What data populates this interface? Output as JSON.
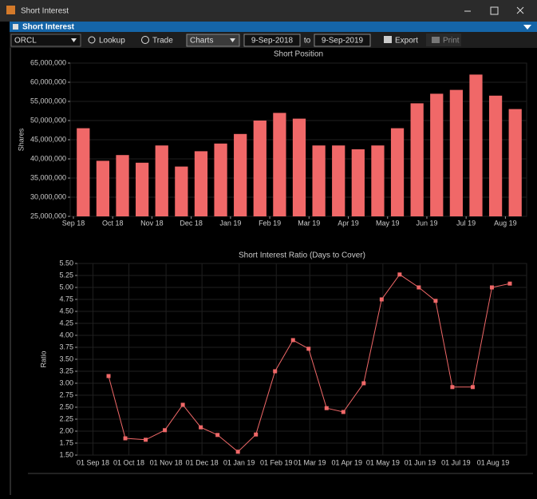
{
  "window": {
    "title": "Short Interest"
  },
  "panel": {
    "title": "Short Interest"
  },
  "toolbar": {
    "symbol": "ORCL",
    "lookup": "Lookup",
    "trade": "Trade",
    "view": "Charts",
    "from": "9-Sep-2018",
    "to_label": "to",
    "to": "9-Sep-2019",
    "export": "Export",
    "print": "Print"
  },
  "chart_data": [
    {
      "type": "bar",
      "title": "Short Position",
      "y_label": "Shares",
      "color": "#f06868",
      "grid": true,
      "categories": [
        "Sep 18",
        null,
        "Oct 18",
        null,
        "Nov 18",
        null,
        "Dec 18",
        null,
        "Jan 19",
        null,
        "Feb 19",
        null,
        "Mar 19",
        null,
        "Apr 19",
        null,
        "May 19",
        null,
        "Jun 19",
        null,
        "Jul 19",
        null,
        "Aug 19"
      ],
      "values": [
        48000000,
        39500000,
        41000000,
        39000000,
        43500000,
        38000000,
        42000000,
        44000000,
        46500000,
        50000000,
        52000000,
        50500000,
        43500000,
        43500000,
        42500000,
        43500000,
        48000000,
        54500000,
        57000000,
        58000000,
        62000000,
        56500000,
        53000000
      ],
      "ylim": [
        25000000,
        65000000
      ],
      "yticks": [
        {
          "value": 25000000,
          "label": "25,000,000"
        },
        {
          "value": 30000000,
          "label": "30,000,000"
        },
        {
          "value": 35000000,
          "label": "35,000,000"
        },
        {
          "value": 40000000,
          "label": "40,000,000"
        },
        {
          "value": 45000000,
          "label": "45,000,000"
        },
        {
          "value": 50000000,
          "label": "50,000,000"
        },
        {
          "value": 55000000,
          "label": "55,000,000"
        },
        {
          "value": 60000000,
          "label": "60,000,000"
        },
        {
          "value": 65000000,
          "label": "65,000,000"
        }
      ]
    },
    {
      "type": "line",
      "title": "Short Interest Ratio (Days to Cover)",
      "y_label": "Ratio",
      "color": "#f06868",
      "grid": true,
      "x": [
        "2018-09-14",
        "2018-09-28",
        "2018-10-15",
        "2018-10-31",
        "2018-11-15",
        "2018-11-30",
        "2018-12-14",
        "2018-12-31",
        "2019-01-15",
        "2019-01-31",
        "2019-02-15",
        "2019-02-28",
        "2019-03-15",
        "2019-03-29",
        "2019-04-15",
        "2019-04-30",
        "2019-05-15",
        "2019-05-31",
        "2019-06-14",
        "2019-06-28",
        "2019-07-15",
        "2019-07-31",
        "2019-08-15"
      ],
      "values": [
        3.15,
        1.85,
        1.82,
        2.02,
        2.55,
        2.08,
        1.92,
        1.57,
        1.93,
        3.25,
        3.9,
        3.72,
        2.48,
        2.4,
        3.0,
        4.75,
        5.27,
        5.0,
        4.72,
        2.92,
        2.92,
        5.0,
        5.08
      ],
      "xlim": [
        "2018-08-19",
        "2019-08-29"
      ],
      "xticks": [
        {
          "value": "2018-09-01",
          "label": "01 Sep 18"
        },
        {
          "value": "2018-10-01",
          "label": "01 Oct 18"
        },
        {
          "value": "2018-11-01",
          "label": "01 Nov 18"
        },
        {
          "value": "2018-12-01",
          "label": "01 Dec 18"
        },
        {
          "value": "2019-01-01",
          "label": "01 Jan 19"
        },
        {
          "value": "2019-02-01",
          "label": "01 Feb 19"
        },
        {
          "value": "2019-03-01",
          "label": "01 Mar 19"
        },
        {
          "value": "2019-04-01",
          "label": "01 Apr 19"
        },
        {
          "value": "2019-05-01",
          "label": "01 May 19"
        },
        {
          "value": "2019-06-01",
          "label": "01 Jun 19"
        },
        {
          "value": "2019-07-01",
          "label": "01 Jul 19"
        },
        {
          "value": "2019-08-01",
          "label": "01 Aug 19"
        }
      ],
      "ylim": [
        1.5,
        5.5
      ],
      "yticks": [
        {
          "value": 1.5,
          "label": "1.50"
        },
        {
          "value": 1.75,
          "label": "1.75"
        },
        {
          "value": 2,
          "label": "2.00"
        },
        {
          "value": 2.25,
          "label": "2.25"
        },
        {
          "value": 2.5,
          "label": "2.50"
        },
        {
          "value": 2.75,
          "label": "2.75"
        },
        {
          "value": 3,
          "label": "3.00"
        },
        {
          "value": 3.25,
          "label": "3.25"
        },
        {
          "value": 3.5,
          "label": "3.50"
        },
        {
          "value": 3.75,
          "label": "3.75"
        },
        {
          "value": 4,
          "label": "4.00"
        },
        {
          "value": 4.25,
          "label": "4.25"
        },
        {
          "value": 4.5,
          "label": "4.50"
        },
        {
          "value": 4.75,
          "label": "4.75"
        },
        {
          "value": 5,
          "label": "5.00"
        },
        {
          "value": 5.25,
          "label": "5.25"
        },
        {
          "value": 5.5,
          "label": "5.50"
        }
      ]
    }
  ]
}
